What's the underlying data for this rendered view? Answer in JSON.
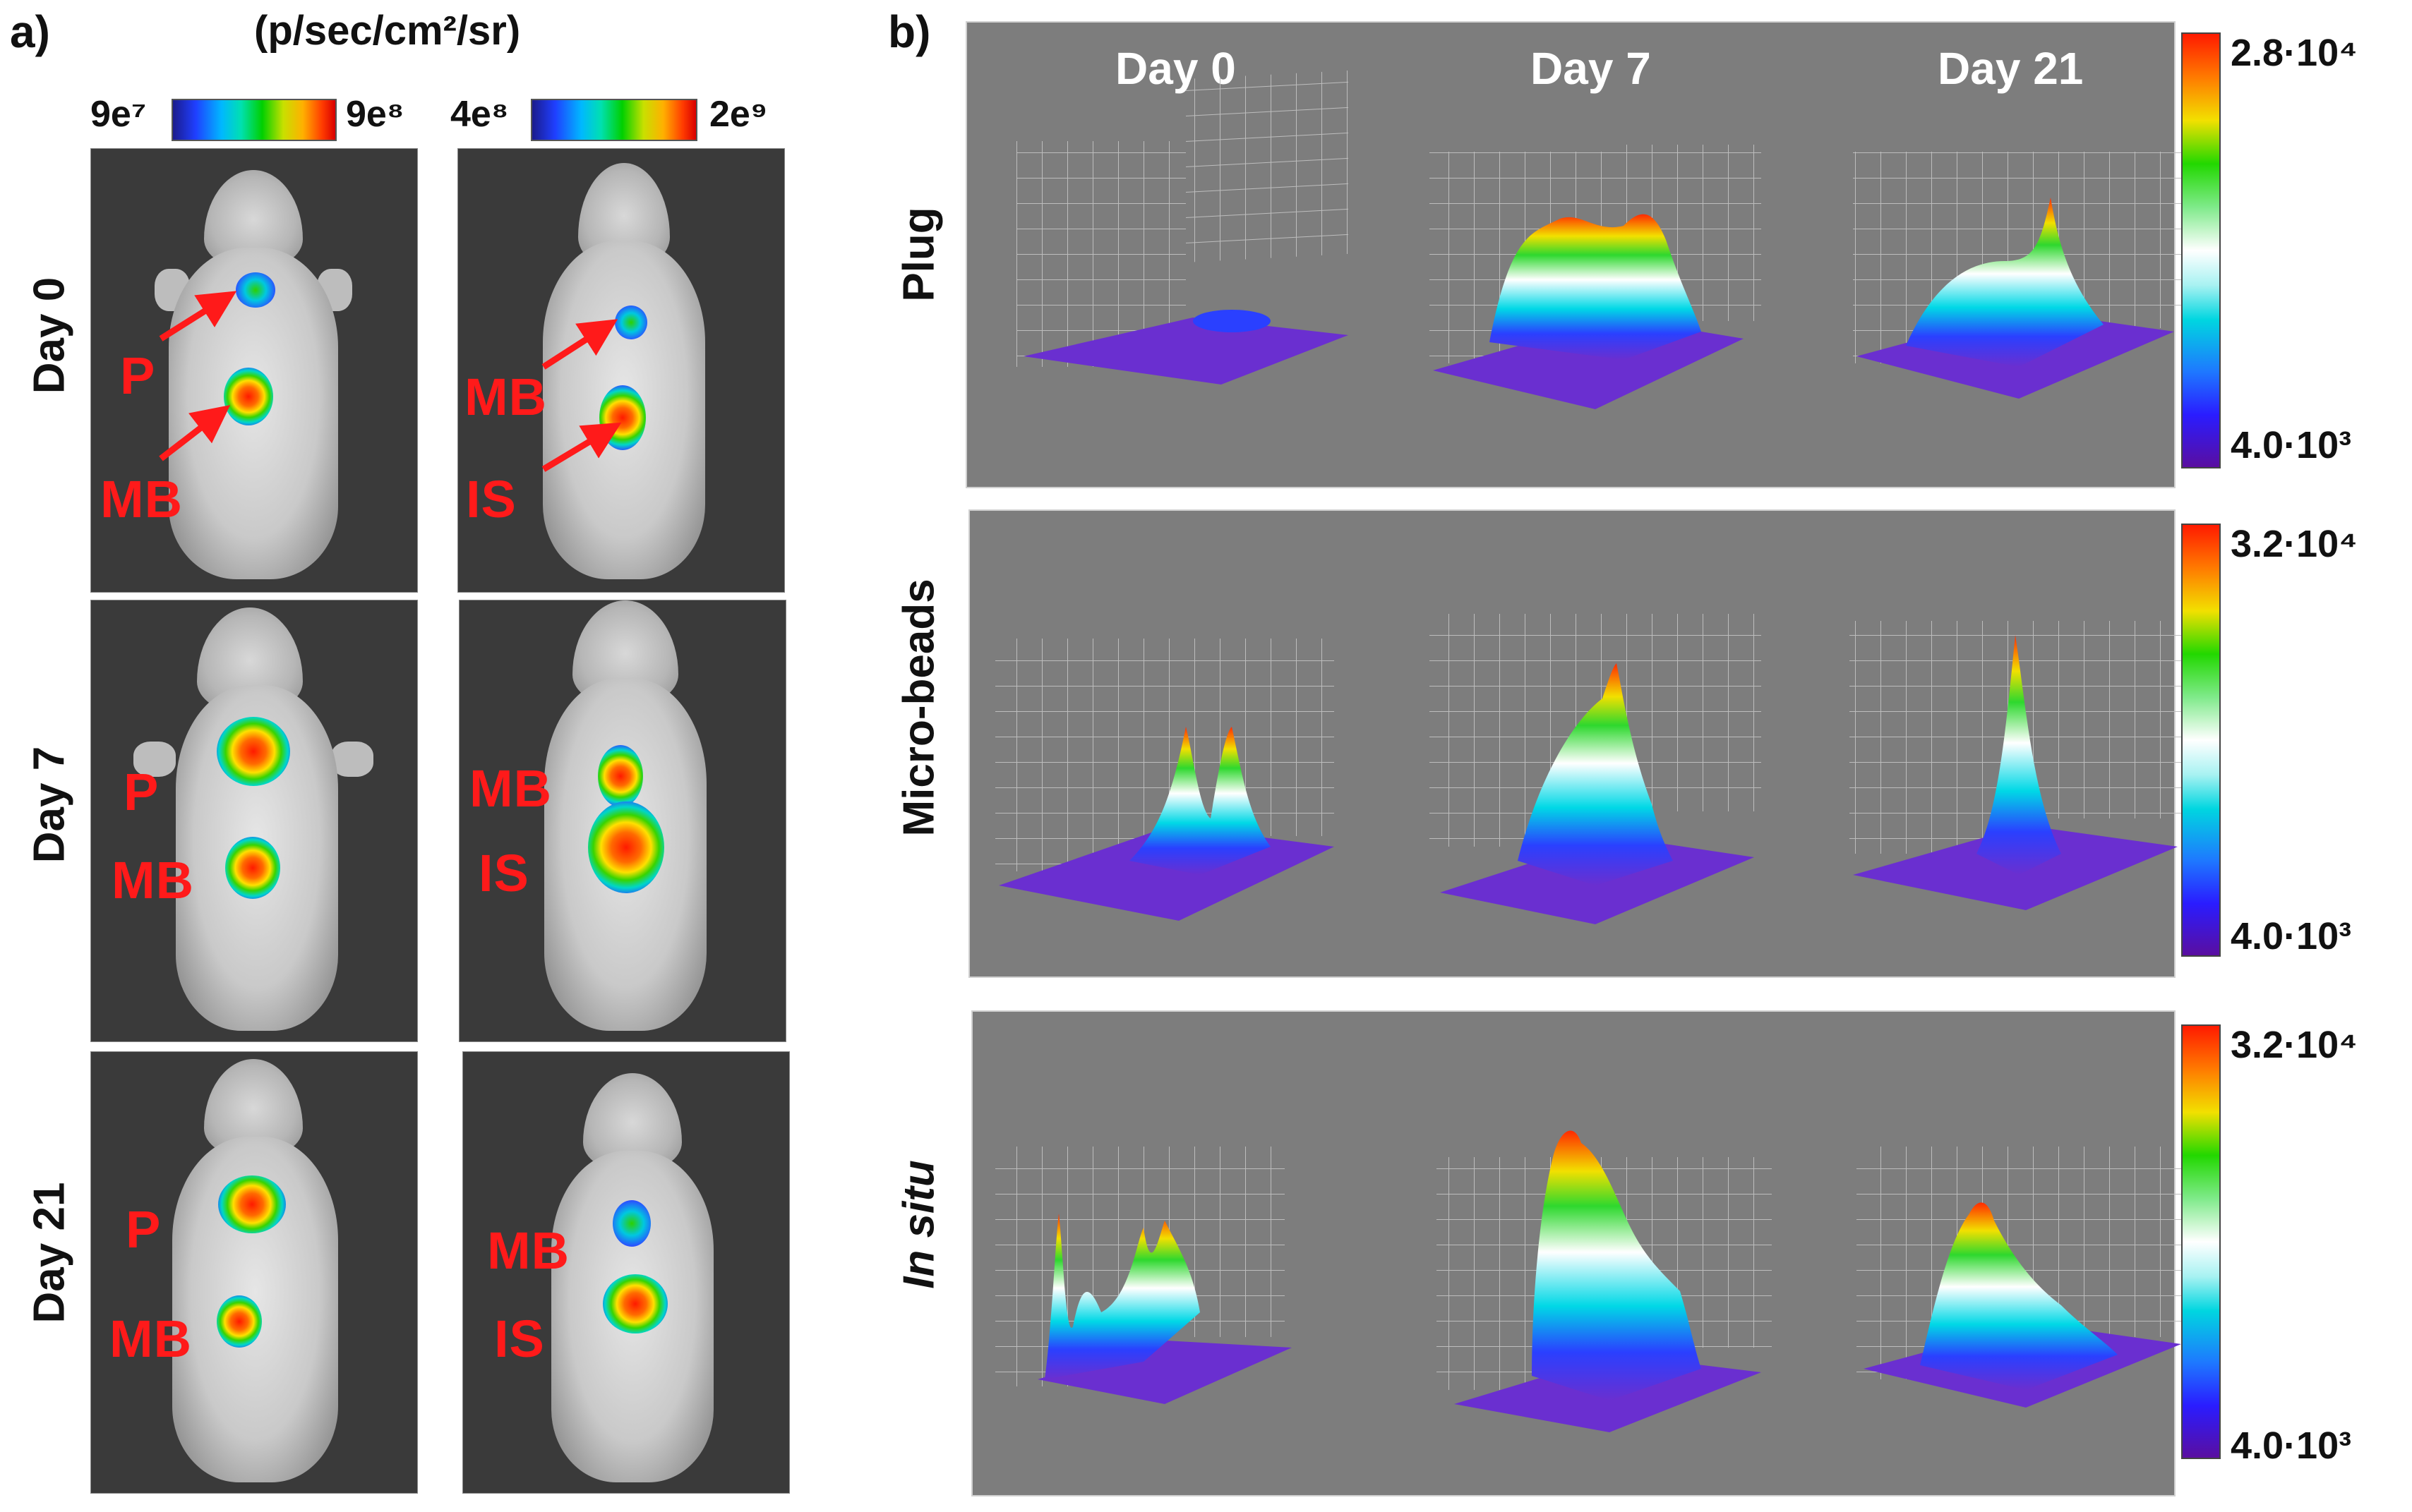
{
  "panel_a": {
    "letter": "a)",
    "units": "(p/sec/cm²/sr)",
    "scale_left": {
      "min": "9e⁷",
      "max": "9e⁸"
    },
    "scale_right": {
      "min": "4e⁸",
      "max": "2e⁹"
    },
    "rows": [
      {
        "label": "Day 0"
      },
      {
        "label": "Day 7"
      },
      {
        "label": "Day 21"
      }
    ],
    "labels": {
      "p": "P",
      "mb": "MB",
      "is": "IS"
    }
  },
  "panel_b": {
    "letter": "b)",
    "columns": [
      "Day 0",
      "Day 7",
      "Day 21"
    ],
    "rows": [
      {
        "label": "Plug",
        "italic": false,
        "scale_max": "2.8·10⁴",
        "scale_min": "4.0·10³"
      },
      {
        "label": "Micro-beads",
        "italic": false,
        "scale_max": "3.2·10⁴",
        "scale_min": "4.0·10³"
      },
      {
        "label": "In situ",
        "italic": true,
        "scale_max": "3.2·10⁴",
        "scale_min": "4.0·10³"
      }
    ]
  },
  "colors": {
    "annotation_red": "#ff1a1a",
    "panel_gray": "#7d7d7d",
    "surface_base": "#6a2fd0"
  }
}
